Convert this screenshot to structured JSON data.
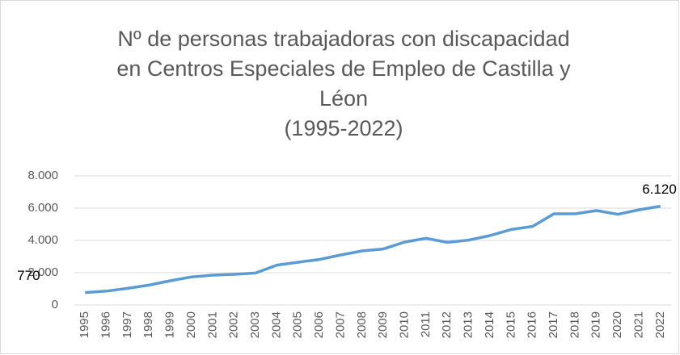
{
  "chart_data": {
    "type": "line",
    "title": [
      "Nº de personas trabajadoras  con discapacidad",
      "en Centros Especiales de Empleo de Castilla y",
      "Léon",
      "(1995-2022)"
    ],
    "categories": [
      "1995",
      "1996",
      "1997",
      "1998",
      "1999",
      "2000",
      "2001",
      "2002",
      "2003",
      "2004",
      "2005",
      "2006",
      "2007",
      "2008",
      "2009",
      "2010",
      "2011",
      "2012",
      "2013",
      "2014",
      "2015",
      "2016",
      "2017",
      "2018",
      "2019",
      "2020",
      "2021",
      "2022"
    ],
    "series": [
      {
        "name": null,
        "color": "#5b9bd5",
        "values": [
          770,
          860,
          1030,
          1230,
          1500,
          1740,
          1850,
          1900,
          1980,
          2470,
          2650,
          2820,
          3100,
          3350,
          3470,
          3900,
          4130,
          3880,
          4020,
          4300,
          4680,
          4870,
          5650,
          5650,
          5850,
          5620,
          5900,
          6120
        ],
        "value_labels": [
          "770",
          null,
          null,
          null,
          null,
          null,
          null,
          null,
          null,
          null,
          null,
          null,
          null,
          null,
          null,
          null,
          null,
          null,
          null,
          null,
          null,
          null,
          null,
          null,
          null,
          null,
          null,
          "6.120"
        ]
      }
    ],
    "ylim": [
      0,
      8000
    ],
    "yticks": [
      0,
      {
        "value": 2000,
        "label": "2.000"
      },
      {
        "value": 4000,
        "label": "4.000"
      },
      {
        "value": 6000,
        "label": "6.000"
      },
      {
        "value": 8000,
        "label": "8.000"
      }
    ],
    "grid": true
  }
}
